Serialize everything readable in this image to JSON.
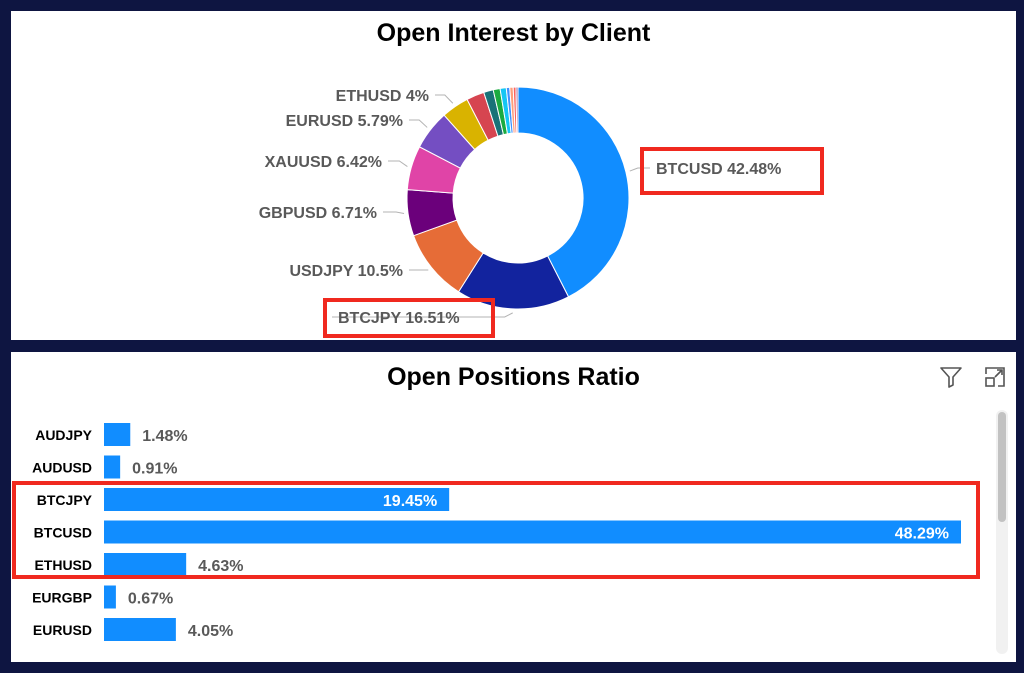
{
  "colors": {
    "page_background": "#0e1541",
    "bar": "#118dff",
    "highlight": "#f0291f",
    "label_gray": "#595959"
  },
  "icons": {
    "filter": "filter-icon",
    "focus_mode": "focus-mode-icon"
  },
  "chart_data": [
    {
      "type": "pie",
      "donut": true,
      "title": "Open Interest by Client",
      "slices": [
        {
          "label": "BTCUSD",
          "value": 42.48,
          "display": "BTCUSD 42.48%",
          "color": "#118dff",
          "highlighted": true
        },
        {
          "label": "BTCJPY",
          "value": 16.51,
          "display": "BTCJPY 16.51%",
          "color": "#12239e",
          "highlighted": true
        },
        {
          "label": "USDJPY",
          "value": 10.5,
          "display": "USDJPY 10.5%",
          "color": "#e66c37",
          "highlighted": false
        },
        {
          "label": "GBPUSD",
          "value": 6.71,
          "display": "GBPUSD 6.71%",
          "color": "#6b007b",
          "highlighted": false
        },
        {
          "label": "XAUUSD",
          "value": 6.42,
          "display": "XAUUSD 6.42%",
          "color": "#e044a7",
          "highlighted": false
        },
        {
          "label": "EURUSD",
          "value": 5.79,
          "display": "EURUSD 5.79%",
          "color": "#744ec2",
          "highlighted": false
        },
        {
          "label": "ETHUSD",
          "value": 4,
          "display": "ETHUSD 4%",
          "color": "#d9b300",
          "highlighted": false
        },
        {
          "label": "",
          "value": 2.6,
          "display": "",
          "color": "#d64550",
          "highlighted": false
        },
        {
          "label": "",
          "value": 1.4,
          "display": "",
          "color": "#197278",
          "highlighted": false
        },
        {
          "label": "",
          "value": 1.0,
          "display": "",
          "color": "#1aab40",
          "highlighted": false
        },
        {
          "label": "",
          "value": 0.9,
          "display": "",
          "color": "#15c6f4",
          "highlighted": false
        },
        {
          "label": "",
          "value": 0.5,
          "display": "",
          "color": "#4092ff",
          "highlighted": false
        },
        {
          "label": "",
          "value": 0.5,
          "display": "",
          "color": "#ff9e7a",
          "highlighted": false
        },
        {
          "label": "",
          "value": 0.4,
          "display": "",
          "color": "#fd625e",
          "highlighted": false
        },
        {
          "label": "",
          "value": 0.29,
          "display": "",
          "color": "#a66999",
          "highlighted": false
        }
      ]
    },
    {
      "type": "bar",
      "orientation": "horizontal",
      "title": "Open Positions Ratio",
      "categories": [
        "AUDJPY",
        "AUDUSD",
        "BTCJPY",
        "BTCUSD",
        "ETHUSD",
        "EURGBP",
        "EURUSD"
      ],
      "values": [
        1.48,
        0.91,
        19.45,
        48.29,
        4.63,
        0.67,
        4.05
      ],
      "value_labels": [
        "1.48%",
        "0.91%",
        "19.45%",
        "48.29%",
        "4.63%",
        "0.67%",
        "4.05%"
      ],
      "highlighted_categories": [
        "BTCJPY",
        "BTCUSD",
        "ETHUSD"
      ],
      "scrollable": true
    }
  ]
}
